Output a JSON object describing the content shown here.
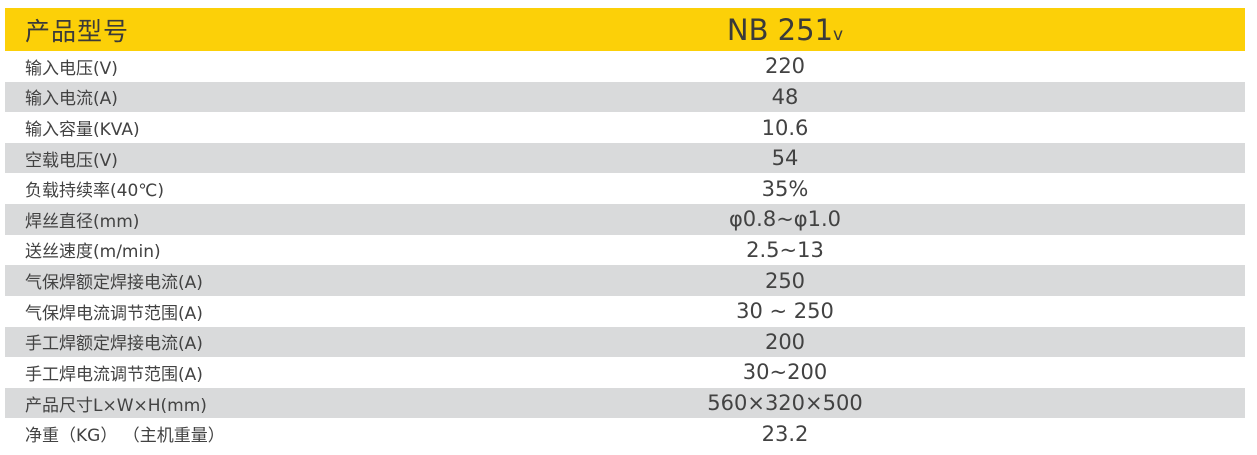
{
  "colors": {
    "header_bg": "#fcd008",
    "header_text": "#3a3a3a",
    "row_alt_bg": "#d9dadb",
    "row_text": "#424242"
  },
  "table": {
    "header": {
      "label": "产品型号",
      "model": "NB 251",
      "model_suffix": "v"
    },
    "rows": [
      {
        "label": "输入电压(V)",
        "value": "220"
      },
      {
        "label": "输入电流(A)",
        "value": "48"
      },
      {
        "label": "输入容量(KVA)",
        "value": "10.6"
      },
      {
        "label": "空载电压(V)",
        "value": "54"
      },
      {
        "label": "负载持续率(40℃)",
        "value": "35%"
      },
      {
        "label": "焊丝直径(mm)",
        "value": "φ0.8~φ1.0"
      },
      {
        "label": "送丝速度(m/min)",
        "value": "2.5~13"
      },
      {
        "label": "气保焊额定焊接电流(A)",
        "value": "250"
      },
      {
        "label": "气保焊电流调节范围(A)",
        "value": "30 ~ 250"
      },
      {
        "label": "手工焊额定焊接电流(A)",
        "value": "200"
      },
      {
        "label": "手工焊电流调节范围(A)",
        "value": "30~200"
      },
      {
        "label": "产品尺寸L×W×H(mm)",
        "value": "560×320×500"
      },
      {
        "label": "净重（KG） （主机重量）",
        "value": "23.2"
      }
    ]
  }
}
